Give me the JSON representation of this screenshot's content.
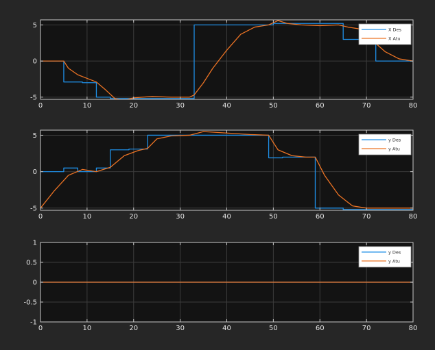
{
  "background": "#262626",
  "axes_background": "#131313",
  "chart_data": [
    {
      "type": "line",
      "title": "",
      "xlabel": "",
      "ylabel": "",
      "xlim": [
        0,
        80
      ],
      "ylim": [
        -5.3,
        5.7
      ],
      "xticks": [
        0,
        10,
        20,
        30,
        40,
        50,
        60,
        70,
        80
      ],
      "yticks": [
        -5,
        0,
        5
      ],
      "grid": true,
      "legend_position": "top-right",
      "series": [
        {
          "name": "X Des",
          "color": "#1f8fe6",
          "x": [
            0,
            5,
            5,
            9,
            9,
            12,
            12,
            15,
            15,
            33,
            33,
            50,
            50,
            65,
            65,
            69,
            69,
            72,
            72,
            80
          ],
          "y": [
            0,
            0,
            -2.9,
            -2.9,
            -3.0,
            -3.0,
            -5.0,
            -5.0,
            -5.2,
            -5.2,
            5.0,
            5.0,
            5.2,
            5.2,
            3.0,
            3.0,
            2.9,
            2.9,
            0,
            0
          ]
        },
        {
          "name": "X Atu",
          "color": "#ec7324",
          "x": [
            0,
            5,
            6,
            8,
            10,
            12,
            14,
            16,
            18,
            20,
            24,
            28,
            32,
            33,
            35,
            37,
            40,
            43,
            46,
            49,
            51,
            53,
            56,
            60,
            64,
            66,
            69,
            71,
            74,
            77,
            80
          ],
          "y": [
            0,
            0,
            -1.0,
            -1.9,
            -2.4,
            -2.9,
            -4.0,
            -5.2,
            -5.4,
            -5.1,
            -4.9,
            -5.0,
            -5.0,
            -4.7,
            -3.0,
            -1.0,
            1.5,
            3.7,
            4.7,
            5.0,
            5.6,
            5.2,
            5.0,
            4.9,
            5.0,
            4.7,
            4.4,
            3.0,
            1.3,
            0.3,
            0
          ]
        }
      ]
    },
    {
      "type": "line",
      "title": "",
      "xlabel": "",
      "ylabel": "",
      "xlim": [
        0,
        80
      ],
      "ylim": [
        -5.3,
        5.7
      ],
      "xticks": [
        0,
        10,
        20,
        30,
        40,
        50,
        60,
        70,
        80
      ],
      "yticks": [
        -5,
        0,
        5
      ],
      "grid": true,
      "legend_position": "top-right",
      "series": [
        {
          "name": "y Des",
          "color": "#1f8fe6",
          "x": [
            0,
            5,
            5,
            8,
            8,
            12,
            12,
            15,
            15,
            19,
            19,
            23,
            23,
            33,
            33,
            49,
            49,
            52,
            52,
            59,
            59,
            65,
            65,
            80
          ],
          "y": [
            0,
            0,
            0.5,
            0.5,
            0,
            0,
            0.5,
            0.5,
            3.0,
            3.0,
            3.1,
            3.1,
            5.0,
            5.0,
            5.0,
            5.0,
            1.9,
            1.9,
            2.0,
            2.0,
            -5.0,
            -5.0,
            -5.2,
            -5.2
          ]
        },
        {
          "name": "y Atu",
          "color": "#ec7324",
          "x": [
            0,
            3,
            6,
            9,
            12,
            15,
            18,
            21,
            23,
            25,
            28,
            32,
            35,
            40,
            45,
            49,
            51,
            54,
            57,
            59,
            61,
            64,
            67,
            70,
            75,
            80
          ],
          "y": [
            -5.0,
            -2.6,
            -0.5,
            0.3,
            0.0,
            0.6,
            2.2,
            2.9,
            3.2,
            4.5,
            4.9,
            5.0,
            5.5,
            5.3,
            5.1,
            5.0,
            3.0,
            2.2,
            2.0,
            2.0,
            -0.5,
            -3.2,
            -4.7,
            -5.0,
            -5.0,
            -5.0
          ]
        }
      ]
    },
    {
      "type": "line",
      "title": "",
      "xlabel": "",
      "ylabel": "",
      "xlim": [
        0,
        80
      ],
      "ylim": [
        -1,
        1
      ],
      "xticks": [
        0,
        10,
        20,
        30,
        40,
        50,
        60,
        70,
        80
      ],
      "yticks": [
        -1,
        -0.5,
        0,
        0.5,
        1
      ],
      "grid": true,
      "legend_position": "top-right",
      "series": [
        {
          "name": "y Des",
          "color": "#1f8fe6",
          "x": [
            0,
            80
          ],
          "y": [
            0,
            0
          ]
        },
        {
          "name": "y Atu",
          "color": "#ec7324",
          "x": [
            0,
            80
          ],
          "y": [
            0,
            0
          ]
        }
      ]
    }
  ]
}
